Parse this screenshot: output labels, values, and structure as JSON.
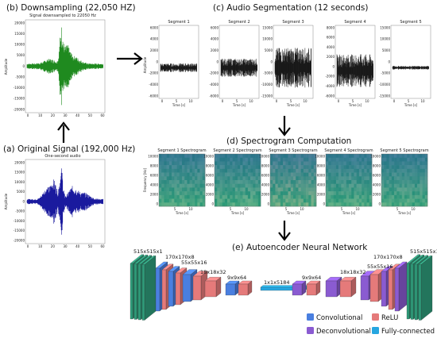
{
  "downsampling": {
    "title": "(b) Downsampling (22,050 HZ)",
    "subtitle": "Signal downsampled to 22050 Hz",
    "ylabel": "Amplitude",
    "yticks": [
      "20000",
      "15000",
      "10000",
      "5000",
      "0",
      "-5000",
      "-10000",
      "-15000",
      "-20000"
    ],
    "xticks": [
      "0",
      "10",
      "20",
      "30",
      "40",
      "50",
      "60"
    ],
    "color": "#1f8a1f"
  },
  "original": {
    "title": "(a) Original Signal (192,000 Hz)",
    "subtitle": "One-second audio",
    "ylabel": "Amplitude",
    "yticks": [
      "20000",
      "15000",
      "10000",
      "5000",
      "0",
      "-5000",
      "-10000",
      "-15000",
      "-20000"
    ],
    "xticks": [
      "0",
      "10",
      "20",
      "30",
      "40",
      "50",
      "60"
    ],
    "color": "#1a1a9e"
  },
  "segmentation": {
    "title": "(c) Audio Segmentation (12 seconds)",
    "xlabel": "Time [s]",
    "ylabel": "Amplitude",
    "segments": [
      {
        "title": "Segment 1",
        "yticks": [
          "6000",
          "4000",
          "2000",
          "0",
          "-2000",
          "-4000",
          "-6000"
        ],
        "xticks": [
          "0",
          "5",
          "10"
        ]
      },
      {
        "title": "Segment 2",
        "yticks": [
          "6000",
          "4000",
          "2000",
          "0",
          "-2000",
          "-4000",
          "-6000"
        ],
        "xticks": [
          "0",
          "5",
          "10"
        ]
      },
      {
        "title": "Segment 3",
        "yticks": [
          "15000",
          "10000",
          "5000",
          "0",
          "-5000",
          "-10000",
          "-15000"
        ],
        "xticks": [
          "0",
          "5",
          "10"
        ]
      },
      {
        "title": "Segment 4",
        "yticks": [
          "8000",
          "6000",
          "4000",
          "2000",
          "0",
          "-2000",
          "-4000",
          "-6000"
        ],
        "xticks": [
          "0",
          "5",
          "10"
        ]
      },
      {
        "title": "Segment 5",
        "yticks": [
          "15000",
          "10000",
          "5000",
          "0",
          "-5000",
          "-10000",
          "-15000"
        ],
        "xticks": [
          "0",
          "5",
          "10"
        ]
      }
    ]
  },
  "spectrogram": {
    "title": "(d) Spectrogram Computation",
    "xlabel": "Time [s]",
    "ylabel": "Frequency [Hz]",
    "panels": [
      {
        "title": "Segment 1 Spectrogram"
      },
      {
        "title": "Segment 2 Spectrogram"
      },
      {
        "title": "Segment 3 Spectrogram"
      },
      {
        "title": "Segment 4 Spectrogram"
      },
      {
        "title": "Segment 5 Spectrogram"
      }
    ],
    "yticks": [
      "10000",
      "8000",
      "6000",
      "4000",
      "2000",
      "0"
    ],
    "xticks": [
      "5",
      "10"
    ]
  },
  "autoencoder": {
    "title": "(e) Autoencoder Neural Network",
    "layer_labels": {
      "in": "515x515x1",
      "c1": "170x170x8",
      "c2": "55x55x16",
      "c3": "18x18x32",
      "c4": "9x9x64",
      "fc": "1x1x5184",
      "d4": "9x9x64",
      "d3": "18x18x32",
      "d2": "55x55x16",
      "d1": "170x170x8",
      "out": "515x515x1"
    },
    "legend": {
      "conv": "Convolutional",
      "relu": "ReLU",
      "deconv": "Deconvolutional",
      "fc": "Fully-connected"
    },
    "colors": {
      "conv": "#4a7fe0",
      "relu": "#e57a7a",
      "deconv": "#8a5bd1",
      "fc": "#26a6e0",
      "image": "#2e9c7a"
    }
  }
}
